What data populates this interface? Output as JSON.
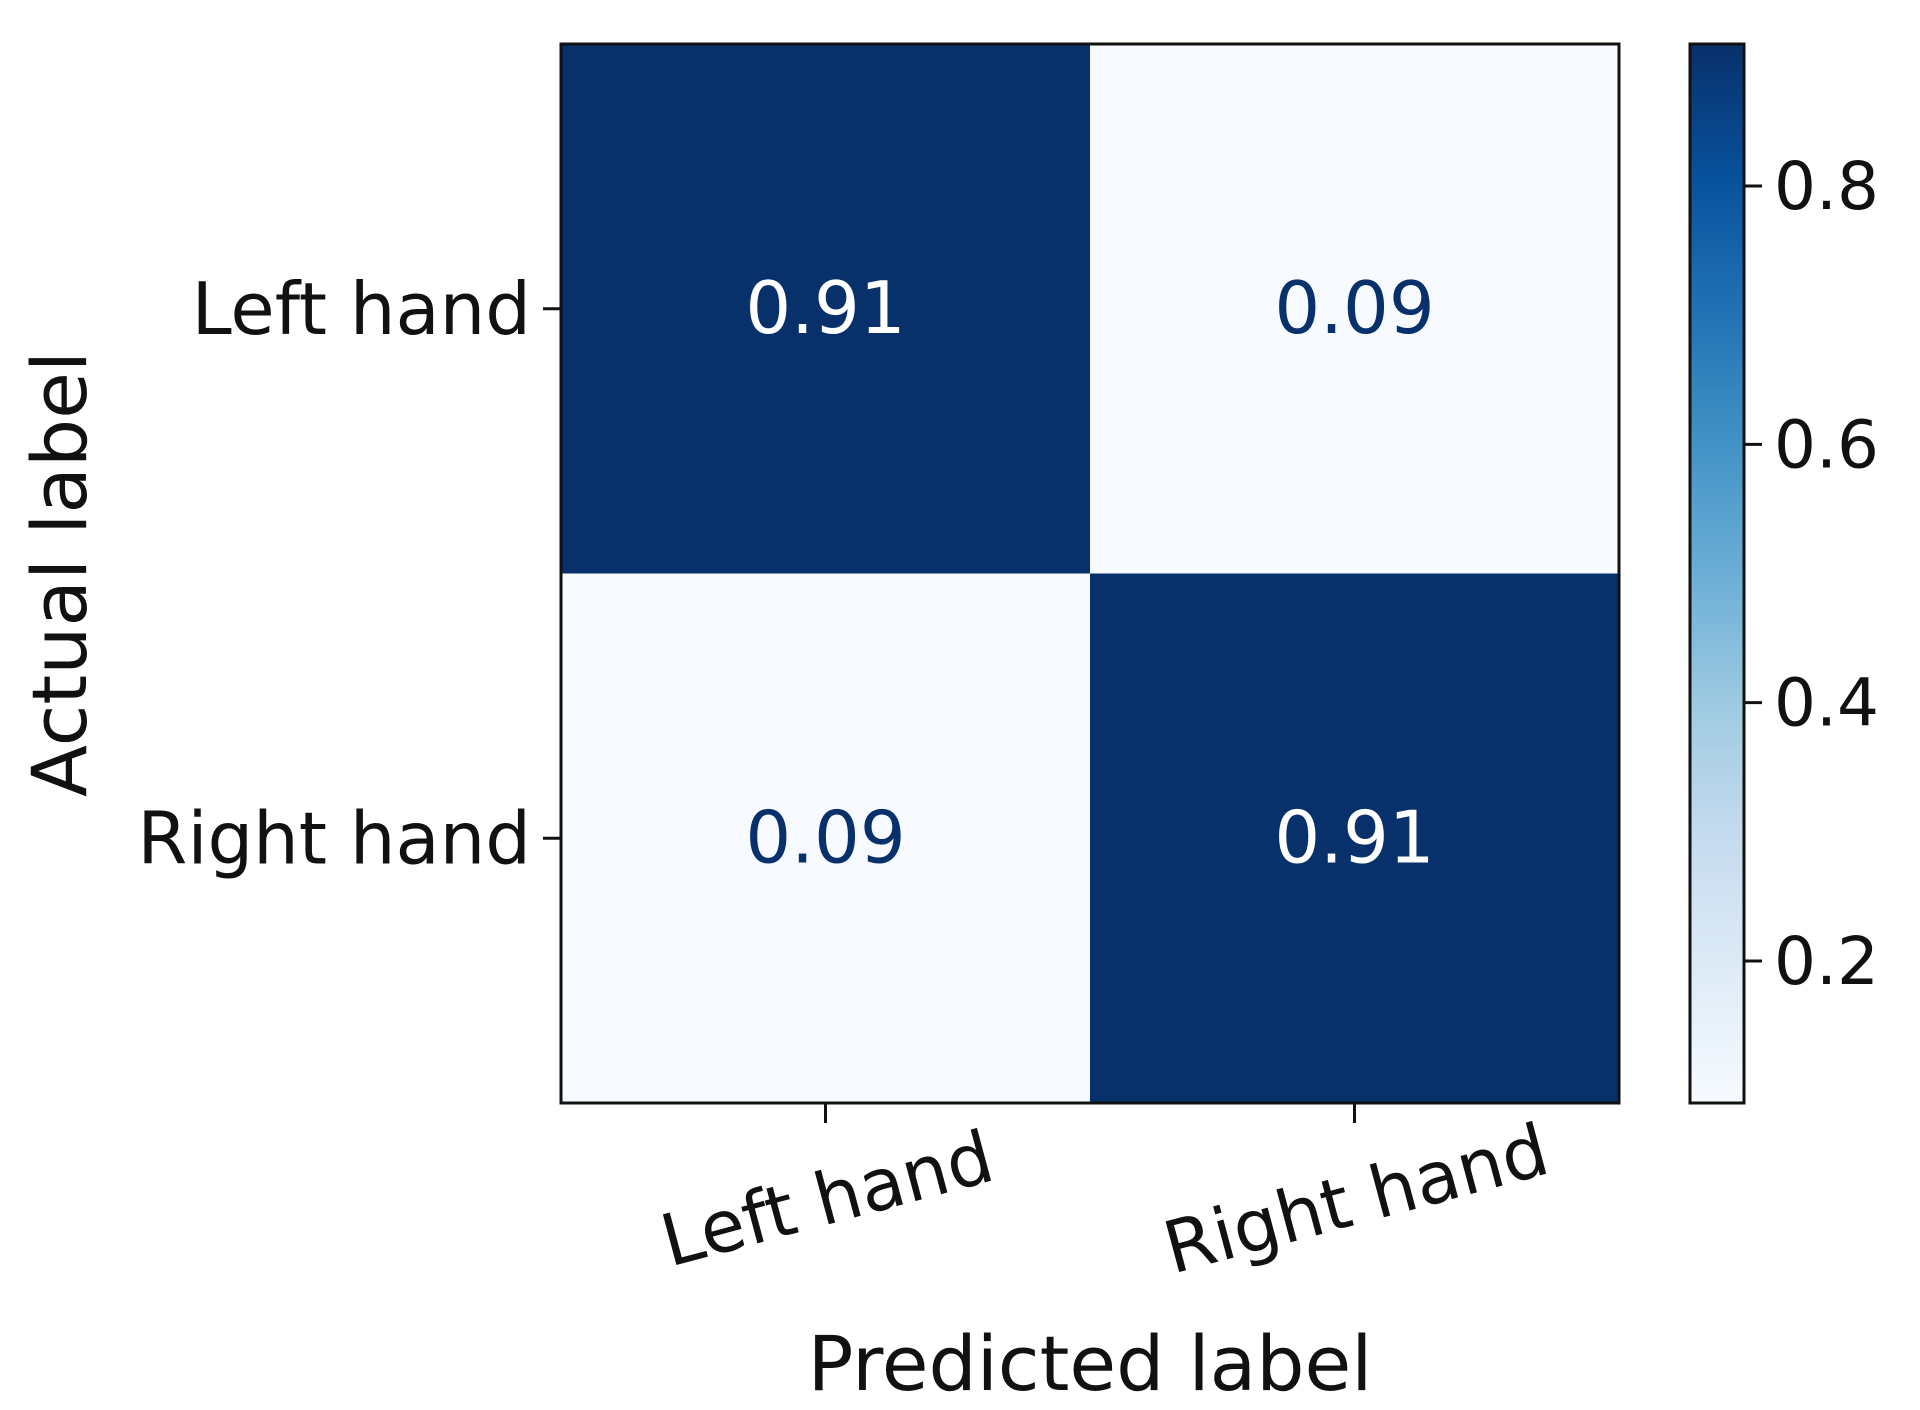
{
  "chart_data": {
    "type": "heatmap",
    "title": "",
    "xlabel": "Predicted label",
    "ylabel": "Actual label",
    "x_categories": [
      "Left hand",
      "Right hand"
    ],
    "y_categories": [
      "Left hand",
      "Right hand"
    ],
    "values": [
      [
        0.91,
        0.09
      ],
      [
        0.09,
        0.91
      ]
    ],
    "value_labels": [
      [
        "0.91",
        "0.09"
      ],
      [
        "0.09",
        "0.91"
      ]
    ],
    "x_tick_rotation": "rotated ~15 degrees",
    "colormap": "Blues",
    "color_low": "#f7fbff",
    "color_high": "#08306b",
    "text_on_dark": "#ffffff",
    "text_on_light": "#08306b",
    "colorbar": {
      "range": [
        0.09,
        0.91
      ],
      "ticks": [
        0.2,
        0.4,
        0.6,
        0.8
      ],
      "tick_labels": [
        "0.2",
        "0.4",
        "0.6",
        "0.8"
      ]
    },
    "grid": false,
    "legend": "colorbar-right"
  }
}
